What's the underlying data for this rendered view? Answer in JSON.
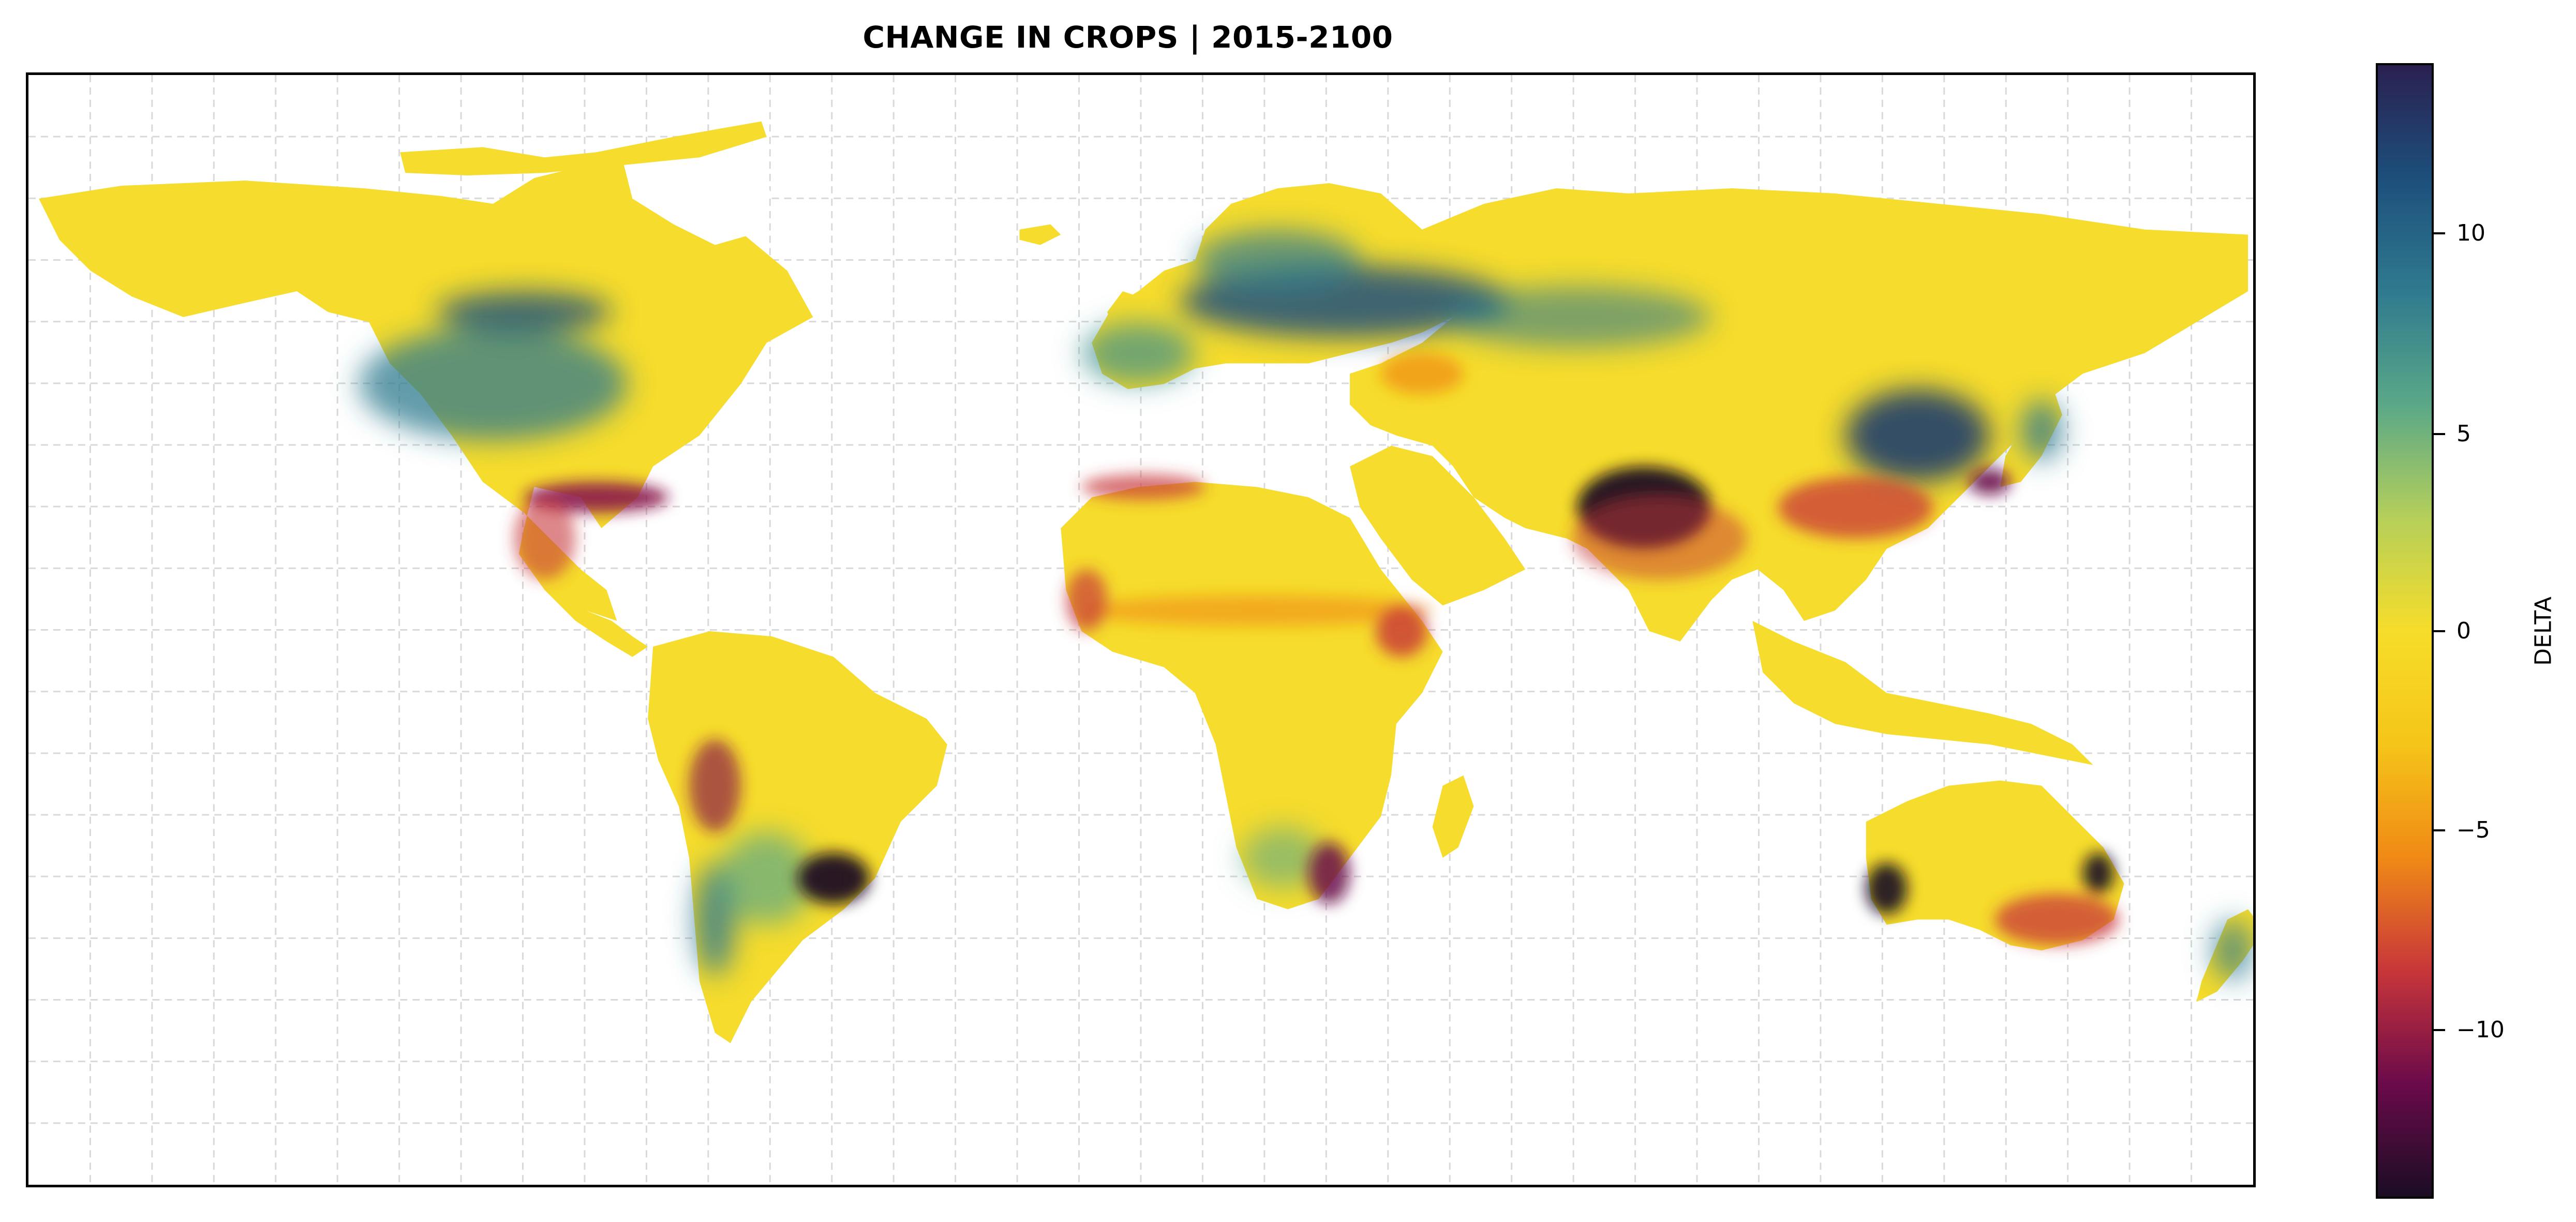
{
  "title": "CHANGE IN CROPS | 2015-2100",
  "colorbar": {
    "label": "DELTA",
    "ticks": [
      "10",
      "5",
      "0",
      "−5",
      "−10"
    ],
    "tick_values": [
      10,
      5,
      0,
      -5,
      -10
    ],
    "range": [
      -14,
      14
    ]
  },
  "map": {
    "projection": "plate-carree",
    "extent_lon": [
      -180,
      180
    ],
    "extent_lat": [
      -90,
      90
    ],
    "gridlines": true,
    "gridline_style": "dashed light gray",
    "gridline_spacing_lon": 10,
    "gridline_spacing_lat": 10,
    "colormap": [
      "#1a0d24",
      "#6b0a4a",
      "#c8363a",
      "#f08a16",
      "#f5c518",
      "#f6dd2a",
      "#b5cf5a",
      "#5aa888",
      "#2f7a8e",
      "#1d4f7c",
      "#2a2050"
    ],
    "highlights": [
      {
        "region": "India / Pakistan (Indus-Ganges)",
        "value": -14
      },
      {
        "region": "Southeast United States / Gulf coast",
        "value": -10
      },
      {
        "region": "Eastern China",
        "value": -7
      },
      {
        "region": "Southern Brazil / Paraguay",
        "value": -13
      },
      {
        "region": "Southwest Australia",
        "value": -12
      },
      {
        "region": "Southeast Australia",
        "value": -12
      },
      {
        "region": "South Africa",
        "value": -8
      },
      {
        "region": "Eastern Europe / Russia belt",
        "value": 10
      },
      {
        "region": "Northeast China",
        "value": 12
      },
      {
        "region": "Central North America",
        "value": 8
      },
      {
        "region": "Southern South America (Chile/Argentina)",
        "value": 7
      }
    ]
  }
}
